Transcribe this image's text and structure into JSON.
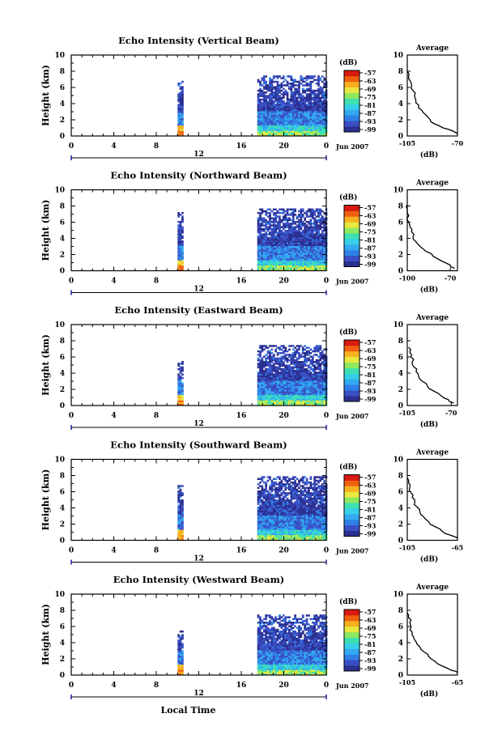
{
  "colors": {
    "scale": [
      "#2b2f8f",
      "#3a4fc4",
      "#2f7fe6",
      "#33a9f0",
      "#35d0e8",
      "#3fe0b0",
      "#8fe860",
      "#e8e840",
      "#f7b020",
      "#f06010",
      "#d81a10"
    ]
  },
  "chart_data": [
    {
      "type": "heatmap",
      "title": "Echo Intensity (Vertical Beam)",
      "xlabel": "",
      "ylabel": "Height (km)",
      "x_ticks": [
        "0",
        "4",
        "8",
        "16",
        "20",
        "0"
      ],
      "x_ticks_values": [
        0,
        4,
        8,
        16,
        20,
        24
      ],
      "y_ticks": [
        "0",
        "2",
        "4",
        "6",
        "8",
        "10"
      ],
      "xlim": [
        0,
        24
      ],
      "ylim": [
        0,
        10
      ],
      "date_marker": "12",
      "date_label": "Jun 2007",
      "colorbar": {
        "unit": "(dB)",
        "labels": [
          "-57",
          "-63",
          "-69",
          "-75",
          "-81",
          "-87",
          "-93",
          "-99"
        ]
      },
      "data_coverage": [
        {
          "x": [
            10.0,
            10.5
          ],
          "top_km": 6.3
        },
        {
          "x": [
            17.5,
            24
          ],
          "top_km": 7.0
        }
      ],
      "average": {
        "title": "Average",
        "xlabel": "(dB)",
        "x_ticks": [
          "-105",
          "-70"
        ],
        "xlim": [
          -105,
          -70
        ],
        "ylim": [
          0,
          10
        ],
        "y_ticks": [
          "0",
          "2",
          "4",
          "6",
          "8",
          "10"
        ],
        "profile": [
          [
            -70,
            0.3
          ],
          [
            -73,
            0.6
          ],
          [
            -80,
            1.0
          ],
          [
            -86,
            1.5
          ],
          [
            -89,
            2.0
          ],
          [
            -92,
            2.6
          ],
          [
            -95,
            3.2
          ],
          [
            -97,
            3.8
          ],
          [
            -99,
            4.4
          ],
          [
            -100,
            5.0
          ],
          [
            -101,
            5.6
          ],
          [
            -102,
            6.2
          ],
          [
            -103,
            6.8
          ],
          [
            -104,
            7.4
          ],
          [
            -105,
            8.0
          ]
        ]
      }
    },
    {
      "type": "heatmap",
      "title": "Echo Intensity (Northward Beam)",
      "xlabel": "",
      "ylabel": "Height (km)",
      "x_ticks": [
        "0",
        "4",
        "8",
        "16",
        "20",
        "0"
      ],
      "x_ticks_values": [
        0,
        4,
        8,
        16,
        20,
        24
      ],
      "y_ticks": [
        "0",
        "2",
        "4",
        "6",
        "8",
        "10"
      ],
      "xlim": [
        0,
        24
      ],
      "ylim": [
        0,
        10
      ],
      "date_marker": "12",
      "date_label": "Jun 2007",
      "colorbar": {
        "unit": "(dB)",
        "labels": [
          "-57",
          "-63",
          "-69",
          "-75",
          "-81",
          "-87",
          "-93",
          "-99"
        ]
      },
      "data_coverage": [
        {
          "x": [
            10.0,
            10.5
          ],
          "top_km": 6.8
        },
        {
          "x": [
            17.5,
            24
          ],
          "top_km": 7.3
        }
      ],
      "average": {
        "title": "Average",
        "xlabel": "(dB)",
        "x_ticks": [
          "-100",
          "-70"
        ],
        "xlim": [
          -100,
          -65
        ],
        "ylim": [
          0,
          10
        ],
        "y_ticks": [
          "0",
          "2",
          "4",
          "6",
          "8",
          "10"
        ],
        "profile": [
          [
            -67,
            0.3
          ],
          [
            -70,
            0.7
          ],
          [
            -76,
            1.2
          ],
          [
            -82,
            1.8
          ],
          [
            -87,
            2.4
          ],
          [
            -91,
            3.0
          ],
          [
            -94,
            3.6
          ],
          [
            -96,
            4.2
          ],
          [
            -97,
            4.8
          ],
          [
            -98,
            5.4
          ],
          [
            -99,
            6.0
          ],
          [
            -99,
            6.8
          ],
          [
            -100,
            7.6
          ],
          [
            -100,
            8.2
          ]
        ]
      }
    },
    {
      "type": "heatmap",
      "title": "Echo Intensity (Eastward Beam)",
      "xlabel": "",
      "ylabel": "Height (km)",
      "x_ticks": [
        "0",
        "4",
        "8",
        "16",
        "20",
        "0"
      ],
      "x_ticks_values": [
        0,
        4,
        8,
        16,
        20,
        24
      ],
      "y_ticks": [
        "0",
        "2",
        "4",
        "6",
        "8",
        "10"
      ],
      "xlim": [
        0,
        24
      ],
      "ylim": [
        0,
        10
      ],
      "date_marker": "12",
      "date_label": "Jun 2007",
      "colorbar": {
        "unit": "(dB)",
        "labels": [
          "-57",
          "-63",
          "-69",
          "-75",
          "-81",
          "-87",
          "-93",
          "-99"
        ]
      },
      "data_coverage": [
        {
          "x": [
            10.0,
            10.5
          ],
          "top_km": 5.0
        },
        {
          "x": [
            17.5,
            24
          ],
          "top_km": 7.0
        }
      ],
      "average": {
        "title": "Average",
        "xlabel": "(dB)",
        "x_ticks": [
          "-105",
          "-70"
        ],
        "xlim": [
          -105,
          -65
        ],
        "ylim": [
          0,
          10
        ],
        "y_ticks": [
          "0",
          "2",
          "4",
          "6",
          "8",
          "10"
        ],
        "profile": [
          [
            -68,
            0.3
          ],
          [
            -72,
            0.7
          ],
          [
            -78,
            1.2
          ],
          [
            -84,
            1.8
          ],
          [
            -89,
            2.4
          ],
          [
            -93,
            3.0
          ],
          [
            -96,
            3.6
          ],
          [
            -98,
            4.2
          ],
          [
            -100,
            4.8
          ],
          [
            -101,
            5.4
          ],
          [
            -102,
            6.0
          ],
          [
            -103,
            6.6
          ],
          [
            -104,
            7.2
          ]
        ]
      }
    },
    {
      "type": "heatmap",
      "title": "Echo Intensity (Southward Beam)",
      "xlabel": "",
      "ylabel": "Height (km)",
      "x_ticks": [
        "0",
        "4",
        "8",
        "16",
        "20",
        "0"
      ],
      "x_ticks_values": [
        0,
        4,
        8,
        16,
        20,
        24
      ],
      "y_ticks": [
        "0",
        "2",
        "4",
        "6",
        "8",
        "10"
      ],
      "xlim": [
        0,
        24
      ],
      "ylim": [
        0,
        10
      ],
      "date_marker": "12",
      "date_label": "Jun 2007",
      "colorbar": {
        "unit": "(dB)",
        "labels": [
          "-57",
          "-63",
          "-69",
          "-75",
          "-81",
          "-87",
          "-93",
          "-99"
        ]
      },
      "data_coverage": [
        {
          "x": [
            10.0,
            10.5
          ],
          "top_km": 6.5
        },
        {
          "x": [
            17.5,
            24
          ],
          "top_km": 7.5
        }
      ],
      "average": {
        "title": "Average",
        "xlabel": "(dB)",
        "x_ticks": [
          "-105",
          "-65"
        ],
        "xlim": [
          -105,
          -65
        ],
        "ylim": [
          0,
          10
        ],
        "y_ticks": [
          "0",
          "2",
          "4",
          "6",
          "8",
          "10"
        ],
        "profile": [
          [
            -65,
            0.3
          ],
          [
            -70,
            0.6
          ],
          [
            -77,
            1.1
          ],
          [
            -83,
            1.7
          ],
          [
            -88,
            2.3
          ],
          [
            -92,
            2.9
          ],
          [
            -95,
            3.5
          ],
          [
            -97,
            4.1
          ],
          [
            -99,
            4.7
          ],
          [
            -101,
            5.3
          ],
          [
            -102,
            5.9
          ],
          [
            -103,
            6.5
          ],
          [
            -104,
            7.1
          ],
          [
            -105,
            7.7
          ]
        ]
      }
    },
    {
      "type": "heatmap",
      "title": "Echo Intensity (Westward Beam)",
      "xlabel": "Local Time",
      "ylabel": "Height (km)",
      "x_ticks": [
        "0",
        "4",
        "8",
        "16",
        "20",
        "0"
      ],
      "x_ticks_values": [
        0,
        4,
        8,
        16,
        20,
        24
      ],
      "y_ticks": [
        "0",
        "2",
        "4",
        "6",
        "8",
        "10"
      ],
      "xlim": [
        0,
        24
      ],
      "ylim": [
        0,
        10
      ],
      "date_marker": "12",
      "date_label": "Jun 2007",
      "colorbar": {
        "unit": "(dB)",
        "labels": [
          "-57",
          "-63",
          "-69",
          "-75",
          "-81",
          "-87",
          "-93",
          "-99"
        ]
      },
      "data_coverage": [
        {
          "x": [
            10.0,
            10.5
          ],
          "top_km": 5.0
        },
        {
          "x": [
            17.5,
            24
          ],
          "top_km": 7.0
        }
      ],
      "average": {
        "title": "Average",
        "xlabel": "(dB)",
        "x_ticks": [
          "-105",
          "-65"
        ],
        "xlim": [
          -105,
          -65
        ],
        "ylim": [
          0,
          10
        ],
        "y_ticks": [
          "0",
          "2",
          "4",
          "6",
          "8",
          "10"
        ],
        "profile": [
          [
            -65,
            0.3
          ],
          [
            -70,
            0.6
          ],
          [
            -77,
            1.1
          ],
          [
            -83,
            1.7
          ],
          [
            -88,
            2.3
          ],
          [
            -92,
            2.9
          ],
          [
            -95,
            3.5
          ],
          [
            -98,
            4.1
          ],
          [
            -100,
            4.7
          ],
          [
            -101,
            5.3
          ],
          [
            -102,
            5.9
          ],
          [
            -103,
            6.5
          ],
          [
            -104,
            7.1
          ],
          [
            -105,
            7.7
          ]
        ]
      }
    }
  ]
}
